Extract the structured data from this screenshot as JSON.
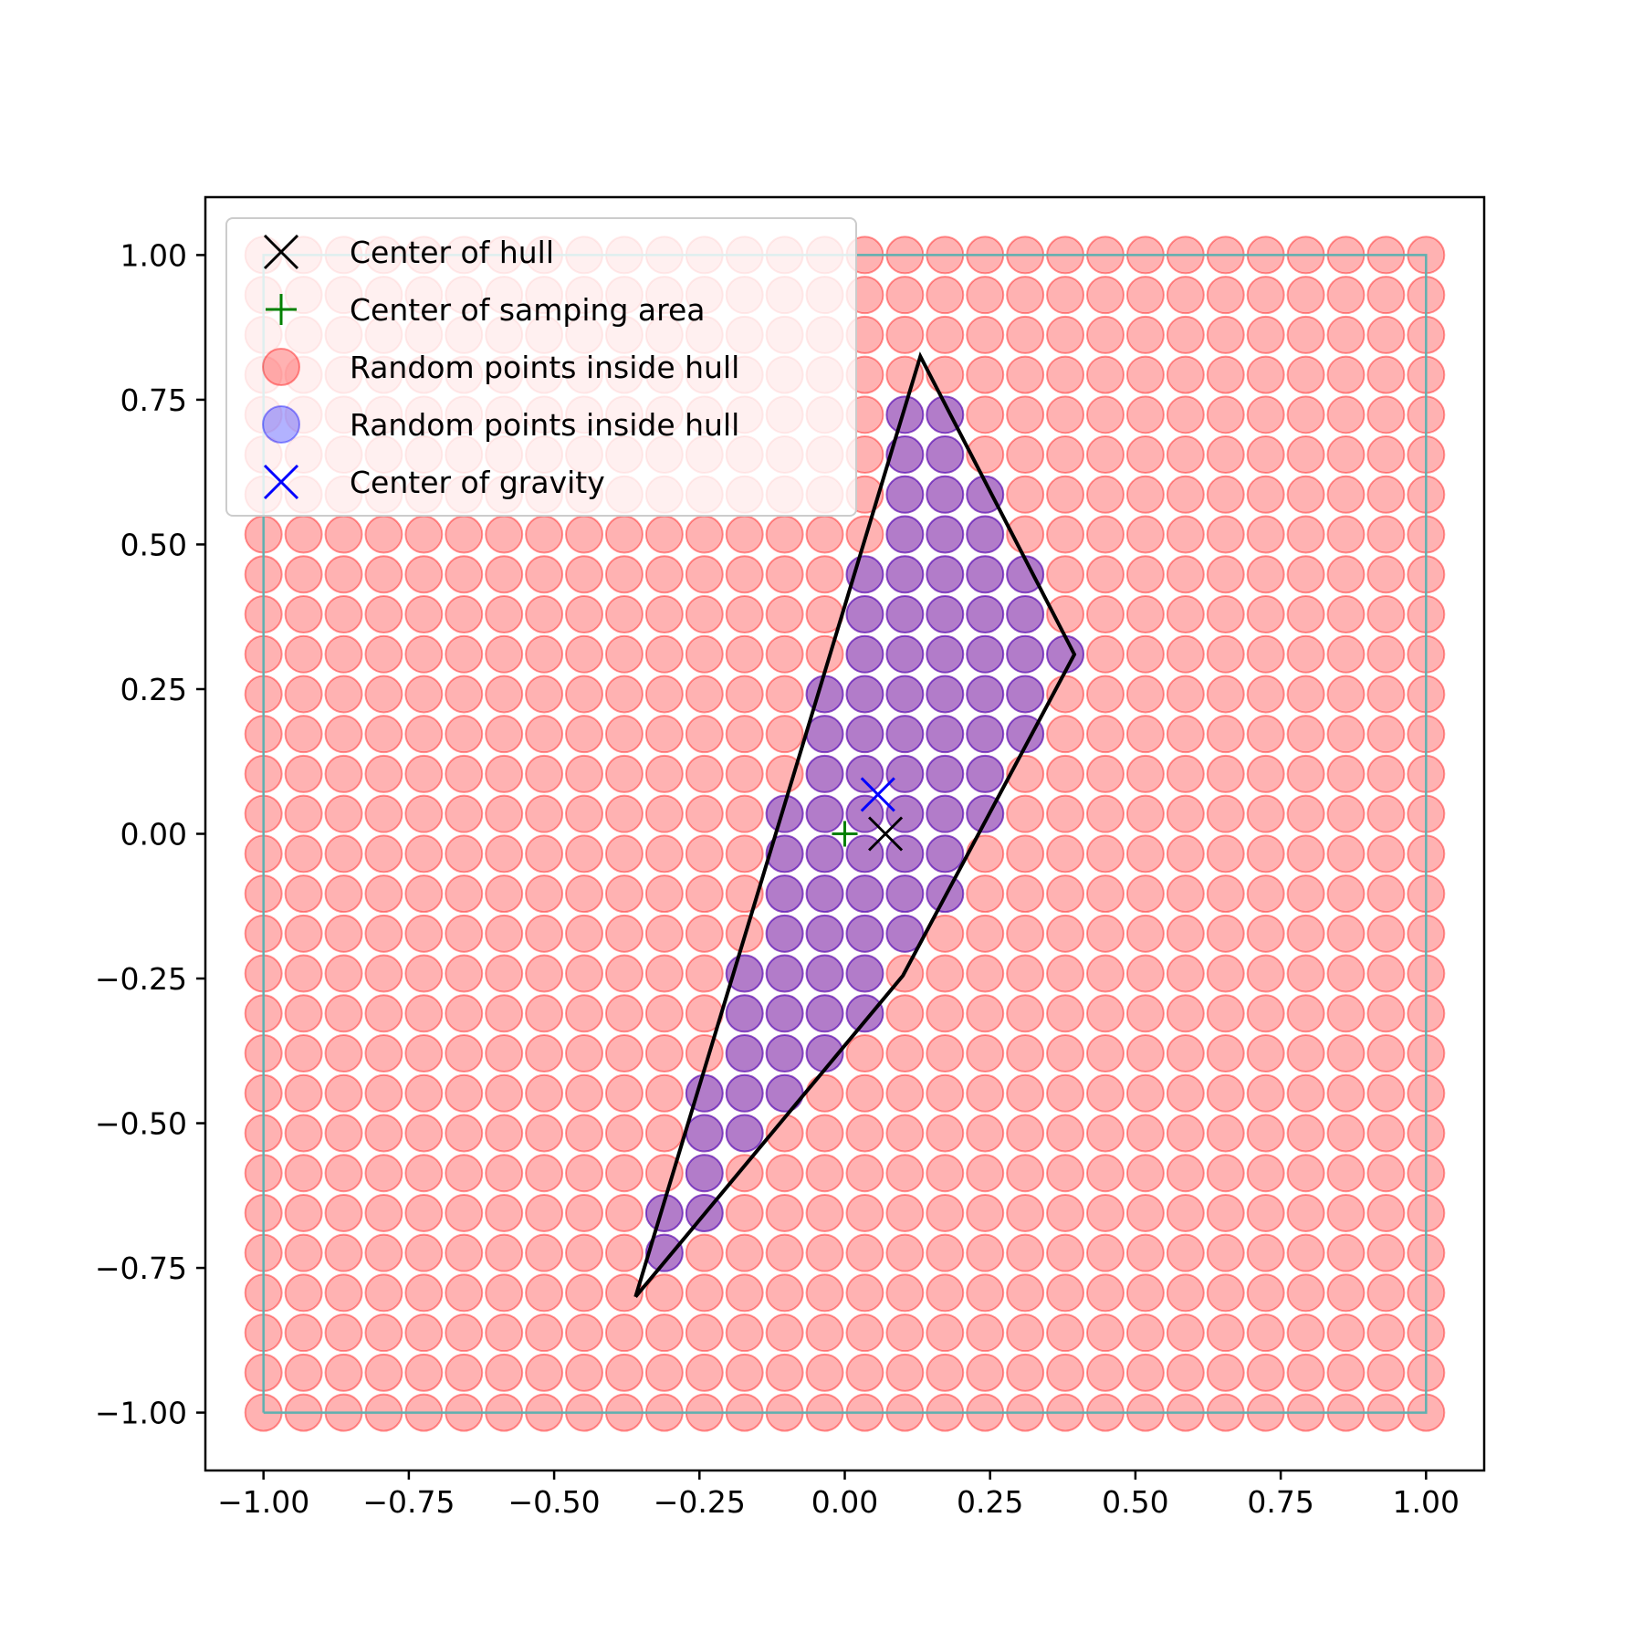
{
  "chart_data": {
    "type": "scatter",
    "title": "",
    "xlabel": "",
    "ylabel": "",
    "xlim": [
      -1.1,
      1.1
    ],
    "ylim": [
      -1.1,
      1.1
    ],
    "grid": false,
    "legend_placement": "upper-left",
    "x_ticks": [
      "−1.00",
      "−0.75",
      "−0.50",
      "−0.25",
      "0.00",
      "0.25",
      "0.50",
      "0.75",
      "1.00"
    ],
    "x_tick_values": [
      -1,
      -0.75,
      -0.5,
      -0.25,
      0,
      0.25,
      0.5,
      0.75,
      1
    ],
    "y_ticks": [
      "−1.00",
      "−0.75",
      "−0.50",
      "−0.25",
      "0.00",
      "0.25",
      "0.50",
      "0.75",
      "1.00"
    ],
    "y_tick_values": [
      -1,
      -0.75,
      -0.5,
      -0.25,
      0,
      0.25,
      0.5,
      0.75,
      1
    ],
    "sampling_grid": {
      "min": -1.0,
      "max": 1.0,
      "count": 30
    },
    "sampling_area": {
      "x": [
        -1,
        1,
        1,
        -1,
        -1
      ],
      "y": [
        -1,
        -1,
        1,
        1,
        -1
      ],
      "color": "#5fb0b0"
    },
    "hull": {
      "x": [
        -0.36,
        0.13,
        0.395,
        0.1,
        -0.36
      ],
      "y": [
        -0.8,
        0.825,
        0.31,
        -0.245,
        -0.8
      ],
      "color": "#000000"
    },
    "series": [
      {
        "name": "Center of hull",
        "marker": "x",
        "color": "#000000",
        "x": [
          0.07
        ],
        "y": [
          0.0
        ]
      },
      {
        "name": "Center of samping area",
        "marker": "+",
        "color": "#008000",
        "x": [
          0.0
        ],
        "y": [
          0.0
        ]
      },
      {
        "name": "Random points inside hull",
        "marker": "circle",
        "color": "#ff0000",
        "alpha": 0.3,
        "points": "all grid points"
      },
      {
        "name": "Random points inside hull",
        "marker": "circle",
        "color": "#0000ff",
        "alpha": 0.3,
        "points": "grid points inside hull"
      },
      {
        "name": "Center of gravity",
        "marker": "x",
        "color": "#0000ff",
        "x": [
          0.057
        ],
        "y": [
          0.068
        ]
      }
    ]
  }
}
